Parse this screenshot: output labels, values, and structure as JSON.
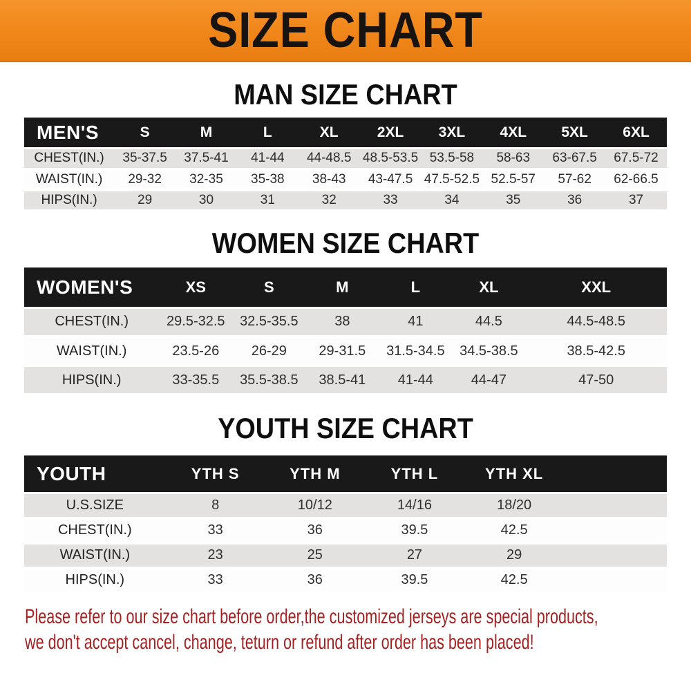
{
  "banner": {
    "title": "SIZE CHART"
  },
  "sections": [
    {
      "heading": "MAN SIZE CHART",
      "table": {
        "header": [
          "MEN'S",
          "S",
          "M",
          "L",
          "XL",
          "2XL",
          "3XL",
          "4XL",
          "5XL",
          "6XL"
        ],
        "rows": [
          {
            "label": "CHEST(IN.)",
            "values": [
              "35-37.5",
              "37.5-41",
              "41-44",
              "44-48.5",
              "48.5-53.5",
              "53.5-58",
              "58-63",
              "63-67.5",
              "67.5-72"
            ]
          },
          {
            "label": "WAIST(IN.)",
            "values": [
              "29-32",
              "32-35",
              "35-38",
              "38-43",
              "43-47.5",
              "47.5-52.5",
              "52.5-57",
              "57-62",
              "62-66.5"
            ]
          },
          {
            "label": "HIPS(IN.)",
            "values": [
              "29",
              "30",
              "31",
              "32",
              "33",
              "34",
              "35",
              "36",
              "37"
            ]
          }
        ]
      }
    },
    {
      "heading": "WOMEN SIZE CHART",
      "table": {
        "header": [
          "WOMEN'S",
          "XS",
          "S",
          "M",
          "L",
          "XL",
          "XXL"
        ],
        "rows": [
          {
            "label": "CHEST(IN.)",
            "values": [
              "29.5-32.5",
              "32.5-35.5",
              "38",
              "41",
              "44.5",
              "44.5-48.5"
            ]
          },
          {
            "label": "WAIST(IN.)",
            "values": [
              "23.5-26",
              "26-29",
              "29-31.5",
              "31.5-34.5",
              "34.5-38.5",
              "38.5-42.5"
            ]
          },
          {
            "label": "HIPS(IN.)",
            "values": [
              "33-35.5",
              "35.5-38.5",
              "38.5-41",
              "41-44",
              "44-47",
              "47-50"
            ]
          }
        ]
      }
    },
    {
      "heading": "YOUTH SIZE CHART",
      "table": {
        "header": [
          "YOUTH",
          "YTH S",
          "YTH M",
          "YTH L",
          "YTH XL"
        ],
        "rows": [
          {
            "label": "U.S.SIZE",
            "values": [
              "8",
              "10/12",
              "14/16",
              "18/20"
            ]
          },
          {
            "label": "CHEST(IN.)",
            "values": [
              "33",
              "36",
              "39.5",
              "42.5"
            ]
          },
          {
            "label": "WAIST(IN.)",
            "values": [
              "23",
              "25",
              "27",
              "29"
            ]
          },
          {
            "label": "HIPS(IN.)",
            "values": [
              "33",
              "36",
              "39.5",
              "42.5"
            ]
          }
        ]
      }
    }
  ],
  "footer": {
    "lines": [
      "Please refer to our size chart before order,the customized jerseys are special products,",
      "we don't accept cancel, change, teturn or refund after order has been placed!"
    ]
  },
  "colors": {
    "banner_background": "#f08619",
    "header_bar": "#191919",
    "row_alt": "#e3e2e0",
    "footer_text": "#a32221"
  }
}
